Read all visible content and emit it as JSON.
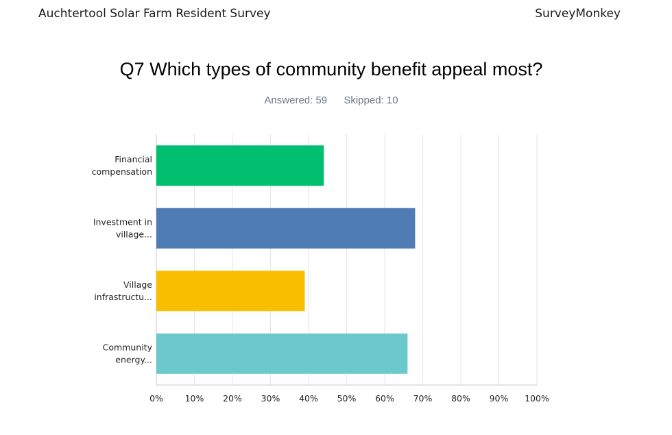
{
  "header": {
    "survey_title": "Auchtertool Solar Farm Resident Survey",
    "brand": "SurveyMonkey"
  },
  "question": {
    "title": "Q7 Which types of community benefit appeal most?",
    "answered": "Answered: 59",
    "skipped": "Skipped: 10"
  },
  "chart_data": {
    "type": "bar",
    "orientation": "horizontal",
    "categories": [
      [
        "Financial",
        "compensation"
      ],
      [
        "Investment in",
        "village..."
      ],
      [
        "Village",
        "infrastructu..."
      ],
      [
        "Community",
        "energy..."
      ]
    ],
    "values": [
      44,
      68,
      39,
      66
    ],
    "colors": [
      "#00bf6f",
      "#507cb6",
      "#f9be00",
      "#6bc8cd"
    ],
    "xlim": [
      0,
      100
    ],
    "ticks": [
      "0%",
      "10%",
      "20%",
      "30%",
      "40%",
      "50%",
      "60%",
      "70%",
      "80%",
      "90%",
      "100%"
    ],
    "grid": true
  }
}
